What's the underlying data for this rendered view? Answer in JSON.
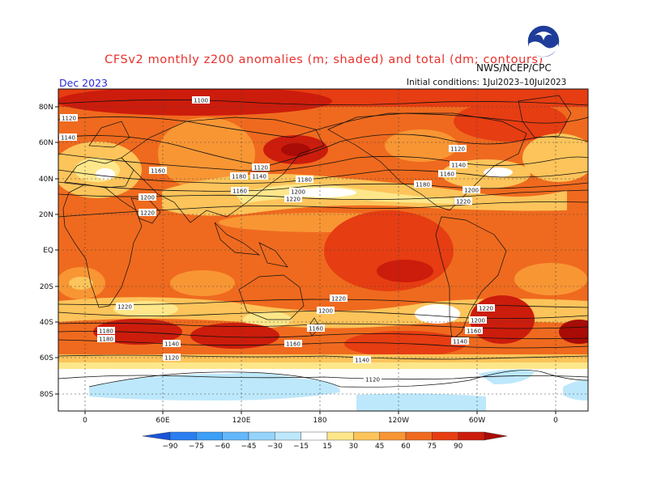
{
  "title": "CFSv2 monthly z200 anomalies (m; shaded) and total (dm; contours)",
  "forecast_month": "Dec 2023",
  "organization": "NWS/NCEP/CPC",
  "initial_conditions": "Initial conditions: 1Jul2023–10Jul2023",
  "logo_text": "NOAA",
  "lat_labels": [
    "80N",
    "60N",
    "40N",
    "20N",
    "EQ",
    "20S",
    "40S",
    "60S",
    "80S"
  ],
  "lon_labels": [
    "0",
    "60E",
    "120E",
    "180",
    "120W",
    "60W",
    "0"
  ],
  "colorbar": {
    "ticks": [
      "−90",
      "−75",
      "−60",
      "−45",
      "−30",
      "−15",
      "15",
      "30",
      "45",
      "60",
      "75",
      "90"
    ],
    "colors": [
      "#1a55d8",
      "#2a7ef0",
      "#3c9ff8",
      "#62b8fa",
      "#96d3fb",
      "#bde8fb",
      "#ffffff",
      "#fde78a",
      "#fcc45a",
      "#f89634",
      "#ef6a1e",
      "#e63d12",
      "#cc1c0c",
      "#a90b06"
    ]
  },
  "contour_labels": [
    {
      "text": "1100"
    },
    {
      "text": "1120"
    },
    {
      "text": "1140"
    },
    {
      "text": "1160"
    },
    {
      "text": "1200"
    },
    {
      "text": "1220"
    },
    {
      "text": "1120"
    },
    {
      "text": "1140"
    },
    {
      "text": "1160"
    },
    {
      "text": "1180"
    },
    {
      "text": "1200"
    },
    {
      "text": "1220"
    },
    {
      "text": "1180"
    },
    {
      "text": "1120"
    },
    {
      "text": "1140"
    },
    {
      "text": "1160"
    },
    {
      "text": "1200"
    },
    {
      "text": "1180"
    },
    {
      "text": "1220"
    },
    {
      "text": "1220"
    },
    {
      "text": "1220"
    },
    {
      "text": "1200"
    },
    {
      "text": "1160"
    },
    {
      "text": "1140"
    },
    {
      "text": "1220"
    },
    {
      "text": "1200"
    },
    {
      "text": "1180"
    },
    {
      "text": "1160"
    },
    {
      "text": "1180"
    },
    {
      "text": "1160"
    },
    {
      "text": "1140"
    },
    {
      "text": "1120"
    },
    {
      "text": "1140"
    },
    {
      "text": "1120"
    }
  ]
}
